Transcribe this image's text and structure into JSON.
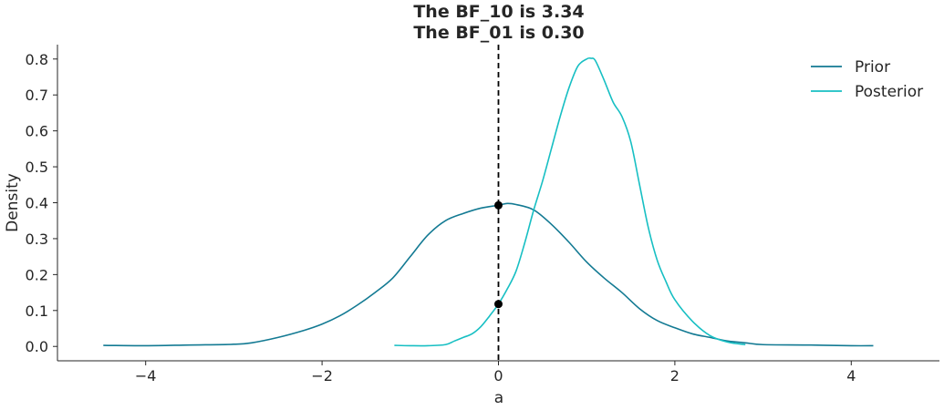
{
  "chart_data": {
    "type": "line",
    "title": [
      "The BF_10 is 3.34",
      "The BF_01 is 0.30"
    ],
    "xlabel": "a",
    "ylabel": "Density",
    "xlim": [
      -5.0,
      5.0
    ],
    "ylim": [
      -0.04,
      0.84
    ],
    "xticks": [
      -4,
      -2,
      0,
      2,
      4
    ],
    "xtick_labels": [
      "−4",
      "−2",
      "0",
      "2",
      "4"
    ],
    "yticks": [
      0.0,
      0.1,
      0.2,
      0.3,
      0.4,
      0.5,
      0.6,
      0.7,
      0.8
    ],
    "ytick_labels": [
      "0.0",
      "0.1",
      "0.2",
      "0.3",
      "0.4",
      "0.5",
      "0.6",
      "0.7",
      "0.8"
    ],
    "grid": false,
    "legend_position": "top-right",
    "series": [
      {
        "name": "Prior",
        "color": "#137a93",
        "x": [
          -4.48,
          -4.0,
          -3.5,
          -3.0,
          -2.8,
          -2.5,
          -2.2,
          -2.0,
          -1.8,
          -1.6,
          -1.4,
          -1.2,
          -1.0,
          -0.8,
          -0.6,
          -0.4,
          -0.2,
          0.0,
          0.1,
          0.2,
          0.4,
          0.6,
          0.8,
          1.0,
          1.2,
          1.4,
          1.6,
          1.8,
          2.0,
          2.2,
          2.4,
          2.6,
          2.8,
          3.0,
          3.5,
          4.0,
          4.25
        ],
        "y": [
          0.003,
          0.002,
          0.004,
          0.006,
          0.01,
          0.025,
          0.045,
          0.062,
          0.085,
          0.115,
          0.15,
          0.19,
          0.25,
          0.31,
          0.35,
          0.37,
          0.385,
          0.393,
          0.398,
          0.395,
          0.38,
          0.34,
          0.29,
          0.235,
          0.19,
          0.15,
          0.105,
          0.072,
          0.052,
          0.035,
          0.025,
          0.015,
          0.01,
          0.005,
          0.004,
          0.002,
          0.002
        ]
      },
      {
        "name": "Posterior",
        "color": "#17bfc3",
        "x": [
          -1.18,
          -1.0,
          -0.8,
          -0.6,
          -0.5,
          -0.4,
          -0.3,
          -0.2,
          -0.1,
          0.0,
          0.1,
          0.2,
          0.3,
          0.4,
          0.5,
          0.6,
          0.7,
          0.8,
          0.9,
          1.0,
          1.05,
          1.1,
          1.2,
          1.3,
          1.4,
          1.5,
          1.6,
          1.7,
          1.8,
          1.9,
          2.0,
          2.2,
          2.4,
          2.6,
          2.8
        ],
        "y": [
          0.003,
          0.002,
          0.002,
          0.005,
          0.015,
          0.025,
          0.035,
          0.055,
          0.085,
          0.118,
          0.16,
          0.21,
          0.29,
          0.38,
          0.46,
          0.55,
          0.64,
          0.72,
          0.78,
          0.8,
          0.802,
          0.795,
          0.74,
          0.68,
          0.64,
          0.57,
          0.45,
          0.33,
          0.24,
          0.18,
          0.13,
          0.07,
          0.03,
          0.012,
          0.005
        ]
      }
    ],
    "reference_line": {
      "x": 0,
      "style": "dashed",
      "color": "#000000"
    },
    "points": [
      {
        "x": 0,
        "y": 0.393,
        "color": "#000000"
      },
      {
        "x": 0,
        "y": 0.118,
        "color": "#000000"
      }
    ]
  }
}
